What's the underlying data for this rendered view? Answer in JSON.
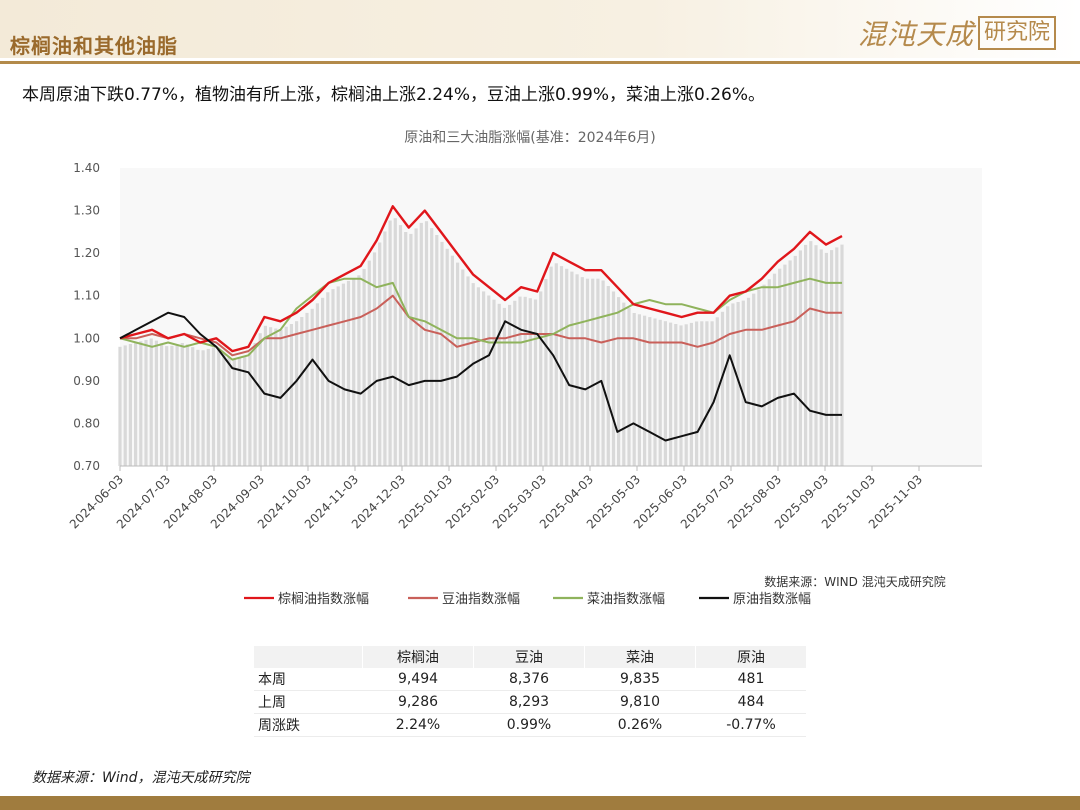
{
  "header": {
    "title": "棕榈油和其他油脂",
    "logo_script": "混沌天成",
    "logo_box": "研究院"
  },
  "summary": "本周原油下跌0.77%，植物油有所上涨，棕榈油上涨2.24%，豆油上涨0.99%，菜油上涨0.26%。",
  "source_note": "数据来源：WIND 混沌天成研究院",
  "footer_source": "数据来源：Wind，混沌天成研究院",
  "colors": {
    "palm": "#e0161b",
    "soy": "#c9605a",
    "rape": "#8fb35c",
    "crude": "#111111",
    "bars": "#d9d9d9",
    "accent": "#b38a4a"
  },
  "chart_data": {
    "type": "line",
    "title": "原油和三大油脂涨幅(基准：2024年6月)",
    "xlabel": "",
    "ylabel": "",
    "ylim": [
      0.7,
      1.4
    ],
    "yticks": [
      "0.70",
      "0.80",
      "0.90",
      "1.00",
      "1.10",
      "1.20",
      "1.30",
      "1.40"
    ],
    "x_tick_labels": [
      "2024-06-03",
      "2024-07-03",
      "2024-08-03",
      "2024-09-03",
      "2024-10-03",
      "2024-11-03",
      "2024-12-03",
      "2025-01-03",
      "2025-02-03",
      "2025-03-03",
      "2025-04-03",
      "2025-05-03",
      "2025-06-03",
      "2025-07-03",
      "2025-08-03",
      "2025-09-03",
      "2025-10-03",
      "2025-11-03"
    ],
    "grid": false,
    "legend_position": "bottom",
    "series": [
      {
        "name": "棕榈油指数涨幅",
        "color_key": "palm",
        "values": [
          1.0,
          1.01,
          1.02,
          1.0,
          1.01,
          0.99,
          1.0,
          0.97,
          0.98,
          1.05,
          1.04,
          1.06,
          1.09,
          1.13,
          1.15,
          1.17,
          1.23,
          1.31,
          1.26,
          1.3,
          1.25,
          1.2,
          1.15,
          1.12,
          1.09,
          1.12,
          1.11,
          1.2,
          1.18,
          1.16,
          1.16,
          1.12,
          1.08,
          1.07,
          1.06,
          1.05,
          1.06,
          1.06,
          1.1,
          1.11,
          1.14,
          1.18,
          1.21,
          1.25,
          1.22,
          1.24
        ]
      },
      {
        "name": "豆油指数涨幅",
        "color_key": "soy",
        "values": [
          1.0,
          1.0,
          1.01,
          1.0,
          1.01,
          1.0,
          0.99,
          0.96,
          0.97,
          1.0,
          1.0,
          1.01,
          1.02,
          1.03,
          1.04,
          1.05,
          1.07,
          1.1,
          1.05,
          1.02,
          1.01,
          0.98,
          0.99,
          1.0,
          1.0,
          1.01,
          1.01,
          1.01,
          1.0,
          1.0,
          0.99,
          1.0,
          1.0,
          0.99,
          0.99,
          0.99,
          0.98,
          0.99,
          1.01,
          1.02,
          1.02,
          1.03,
          1.04,
          1.07,
          1.06,
          1.06
        ]
      },
      {
        "name": "菜油指数涨幅",
        "color_key": "rape",
        "values": [
          1.0,
          0.99,
          0.98,
          0.99,
          0.98,
          0.99,
          0.98,
          0.95,
          0.96,
          1.0,
          1.02,
          1.07,
          1.1,
          1.13,
          1.14,
          1.14,
          1.12,
          1.13,
          1.05,
          1.04,
          1.02,
          1.0,
          1.0,
          0.99,
          0.99,
          0.99,
          1.0,
          1.01,
          1.03,
          1.04,
          1.05,
          1.06,
          1.08,
          1.09,
          1.08,
          1.08,
          1.07,
          1.06,
          1.09,
          1.11,
          1.12,
          1.12,
          1.13,
          1.14,
          1.13,
          1.13
        ]
      },
      {
        "name": "原油指数涨幅",
        "color_key": "crude",
        "values": [
          1.0,
          1.02,
          1.04,
          1.06,
          1.05,
          1.01,
          0.98,
          0.93,
          0.92,
          0.87,
          0.86,
          0.9,
          0.95,
          0.9,
          0.88,
          0.87,
          0.9,
          0.91,
          0.89,
          0.9,
          0.9,
          0.91,
          0.94,
          0.96,
          1.04,
          1.02,
          1.01,
          0.96,
          0.89,
          0.88,
          0.9,
          0.78,
          0.8,
          0.78,
          0.76,
          0.77,
          0.78,
          0.85,
          0.96,
          0.85,
          0.84,
          0.86,
          0.87,
          0.83,
          0.82,
          0.82
        ]
      }
    ]
  },
  "table": {
    "headers": [
      "",
      "棕榈油",
      "豆油",
      "菜油",
      "原油"
    ],
    "rows": [
      {
        "label": "本周",
        "cells": [
          "9,494",
          "8,376",
          "9,835",
          "481"
        ]
      },
      {
        "label": "上周",
        "cells": [
          "9,286",
          "8,293",
          "9,810",
          "484"
        ]
      },
      {
        "label": "周涨跌",
        "cells": [
          "2.24%",
          "0.99%",
          "0.26%",
          "-0.77%"
        ]
      }
    ]
  }
}
